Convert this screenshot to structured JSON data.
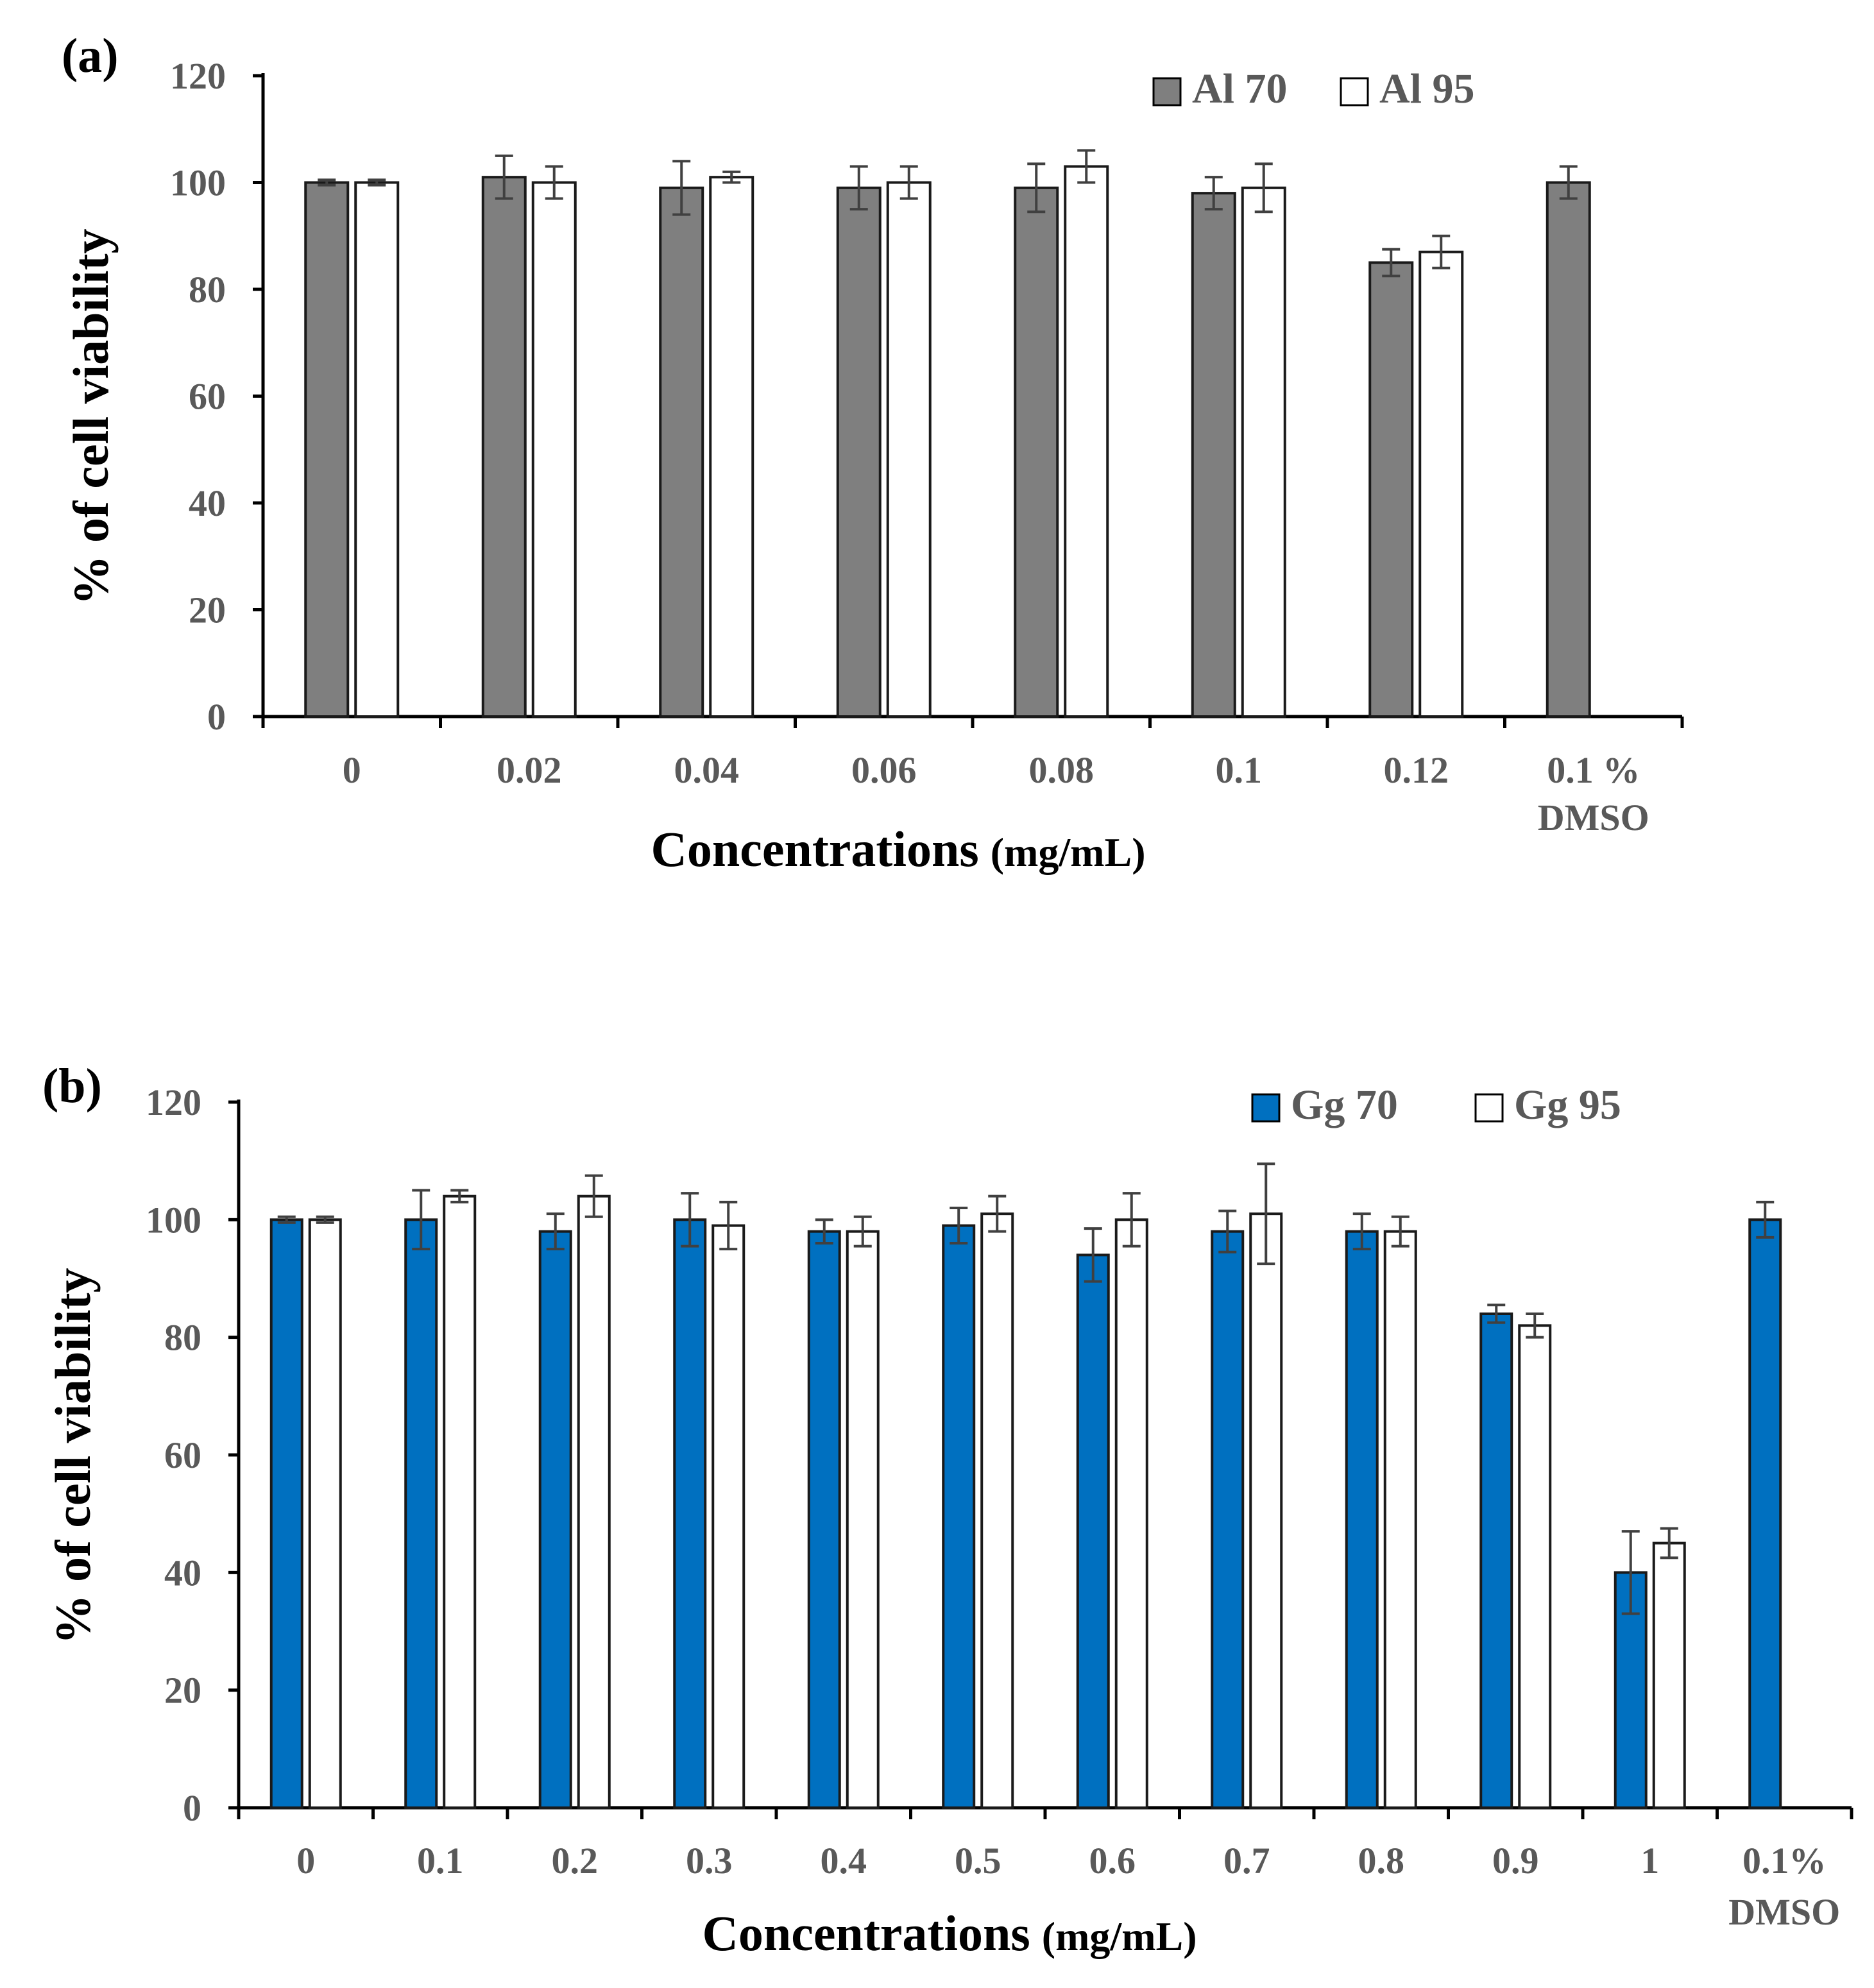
{
  "chart_data": [
    {
      "type": "bar",
      "panel_label": "(a)",
      "ylabel": "% of cell viability",
      "xlabel": "Concentrations",
      "xlabel_unit": "(mg/mL)",
      "ylim": [
        0,
        120
      ],
      "yticks": [
        0,
        20,
        40,
        60,
        80,
        100,
        120
      ],
      "legend_position": "top-right",
      "categories": [
        "0",
        "0.02",
        "0.04",
        "0.06",
        "0.08",
        "0.1",
        "0.12",
        "0.1 %\nDMSO"
      ],
      "series": [
        {
          "name": "Al 70",
          "color": "#7f7f7f",
          "values": [
            100,
            101,
            99,
            99,
            99,
            98,
            85,
            100
          ],
          "errors": [
            0.5,
            4,
            5,
            4,
            4.5,
            3,
            2.5,
            3
          ]
        },
        {
          "name": "Al 95",
          "color": "#ffffff",
          "values": [
            100,
            100,
            101,
            100,
            103,
            99,
            87,
            null
          ],
          "errors": [
            0.5,
            3,
            1,
            3,
            3,
            4.5,
            3,
            null
          ]
        }
      ]
    },
    {
      "type": "bar",
      "panel_label": "(b)",
      "ylabel": "% of cell viability",
      "xlabel": "Concentrations",
      "xlabel_unit": "(mg/mL)",
      "ylim": [
        0,
        120
      ],
      "yticks": [
        0,
        20,
        40,
        60,
        80,
        100,
        120
      ],
      "legend_position": "top-right",
      "categories": [
        "0",
        "0.1",
        "0.2",
        "0.3",
        "0.4",
        "0.5",
        "0.6",
        "0.7",
        "0.8",
        "0.9",
        "1",
        "0.1%\nDMSO"
      ],
      "series": [
        {
          "name": "Gg 70",
          "color": "#0070c0",
          "values": [
            100,
            100,
            98,
            100,
            98,
            99,
            94,
            98,
            98,
            84,
            40,
            100
          ],
          "errors": [
            0.5,
            5,
            3,
            4.5,
            2,
            3,
            4.5,
            3.5,
            3,
            1.5,
            7,
            3
          ]
        },
        {
          "name": "Gg 95",
          "color": "#ffffff",
          "values": [
            100,
            104,
            104,
            99,
            98,
            101,
            100,
            101,
            98,
            82,
            45,
            null
          ],
          "errors": [
            0.5,
            1,
            3.5,
            4,
            2.5,
            3,
            4.5,
            8.5,
            2.5,
            2,
            2.5,
            null
          ]
        }
      ]
    }
  ]
}
